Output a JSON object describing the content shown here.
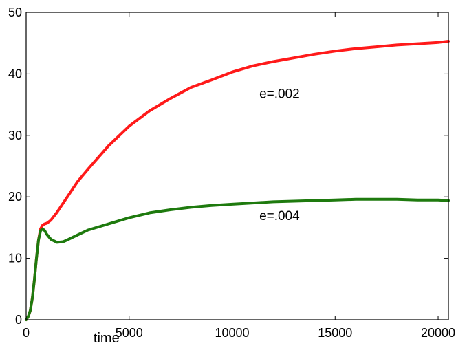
{
  "chart_data": {
    "type": "line",
    "title": "",
    "xlabel": "time",
    "ylabel": "",
    "xlim": [
      0,
      20500
    ],
    "ylim": [
      0,
      50
    ],
    "xticks": [
      0,
      5000,
      10000,
      15000,
      20000
    ],
    "yticks": [
      0,
      10,
      20,
      30,
      40,
      50
    ],
    "grid": false,
    "legend": "none",
    "series": [
      {
        "name": "e=.002",
        "color": "#ff1a1a",
        "x": [
          0,
          100,
          200,
          300,
          400,
          500,
          600,
          700,
          800,
          900,
          1000,
          1200,
          1500,
          2000,
          2500,
          3000,
          4000,
          5000,
          6000,
          7000,
          8000,
          9000,
          10000,
          11000,
          12000,
          13000,
          14000,
          15000,
          16000,
          17000,
          18000,
          19000,
          20000,
          20500
        ],
        "y": [
          0,
          0.5,
          1.5,
          3.5,
          6.5,
          10.0,
          13.0,
          14.8,
          15.4,
          15.6,
          15.7,
          16.2,
          17.5,
          20.0,
          22.5,
          24.5,
          28.3,
          31.5,
          34.0,
          36.0,
          37.8,
          39.0,
          40.3,
          41.3,
          42.0,
          42.6,
          43.2,
          43.7,
          44.1,
          44.4,
          44.7,
          44.9,
          45.1,
          45.3
        ]
      },
      {
        "name": "e=.004",
        "color": "#1e7a0e",
        "x": [
          0,
          100,
          200,
          300,
          400,
          500,
          600,
          700,
          800,
          900,
          1000,
          1200,
          1500,
          1800,
          2000,
          2500,
          3000,
          4000,
          5000,
          6000,
          7000,
          8000,
          9000,
          10000,
          11000,
          12000,
          13000,
          14000,
          15000,
          16000,
          17000,
          18000,
          19000,
          20000,
          20500
        ],
        "y": [
          0,
          0.5,
          1.5,
          3.5,
          6.5,
          10.0,
          13.0,
          14.5,
          14.8,
          14.5,
          13.9,
          13.1,
          12.6,
          12.7,
          13.0,
          13.8,
          14.6,
          15.6,
          16.6,
          17.4,
          17.9,
          18.3,
          18.6,
          18.8,
          19.0,
          19.2,
          19.3,
          19.4,
          19.5,
          19.6,
          19.6,
          19.6,
          19.5,
          19.5,
          19.4
        ]
      }
    ],
    "annotations": [
      {
        "text": "e=.002",
        "x": 12300,
        "y": 36.1
      },
      {
        "text": "e=.004",
        "x": 12300,
        "y": 16.2
      }
    ]
  }
}
